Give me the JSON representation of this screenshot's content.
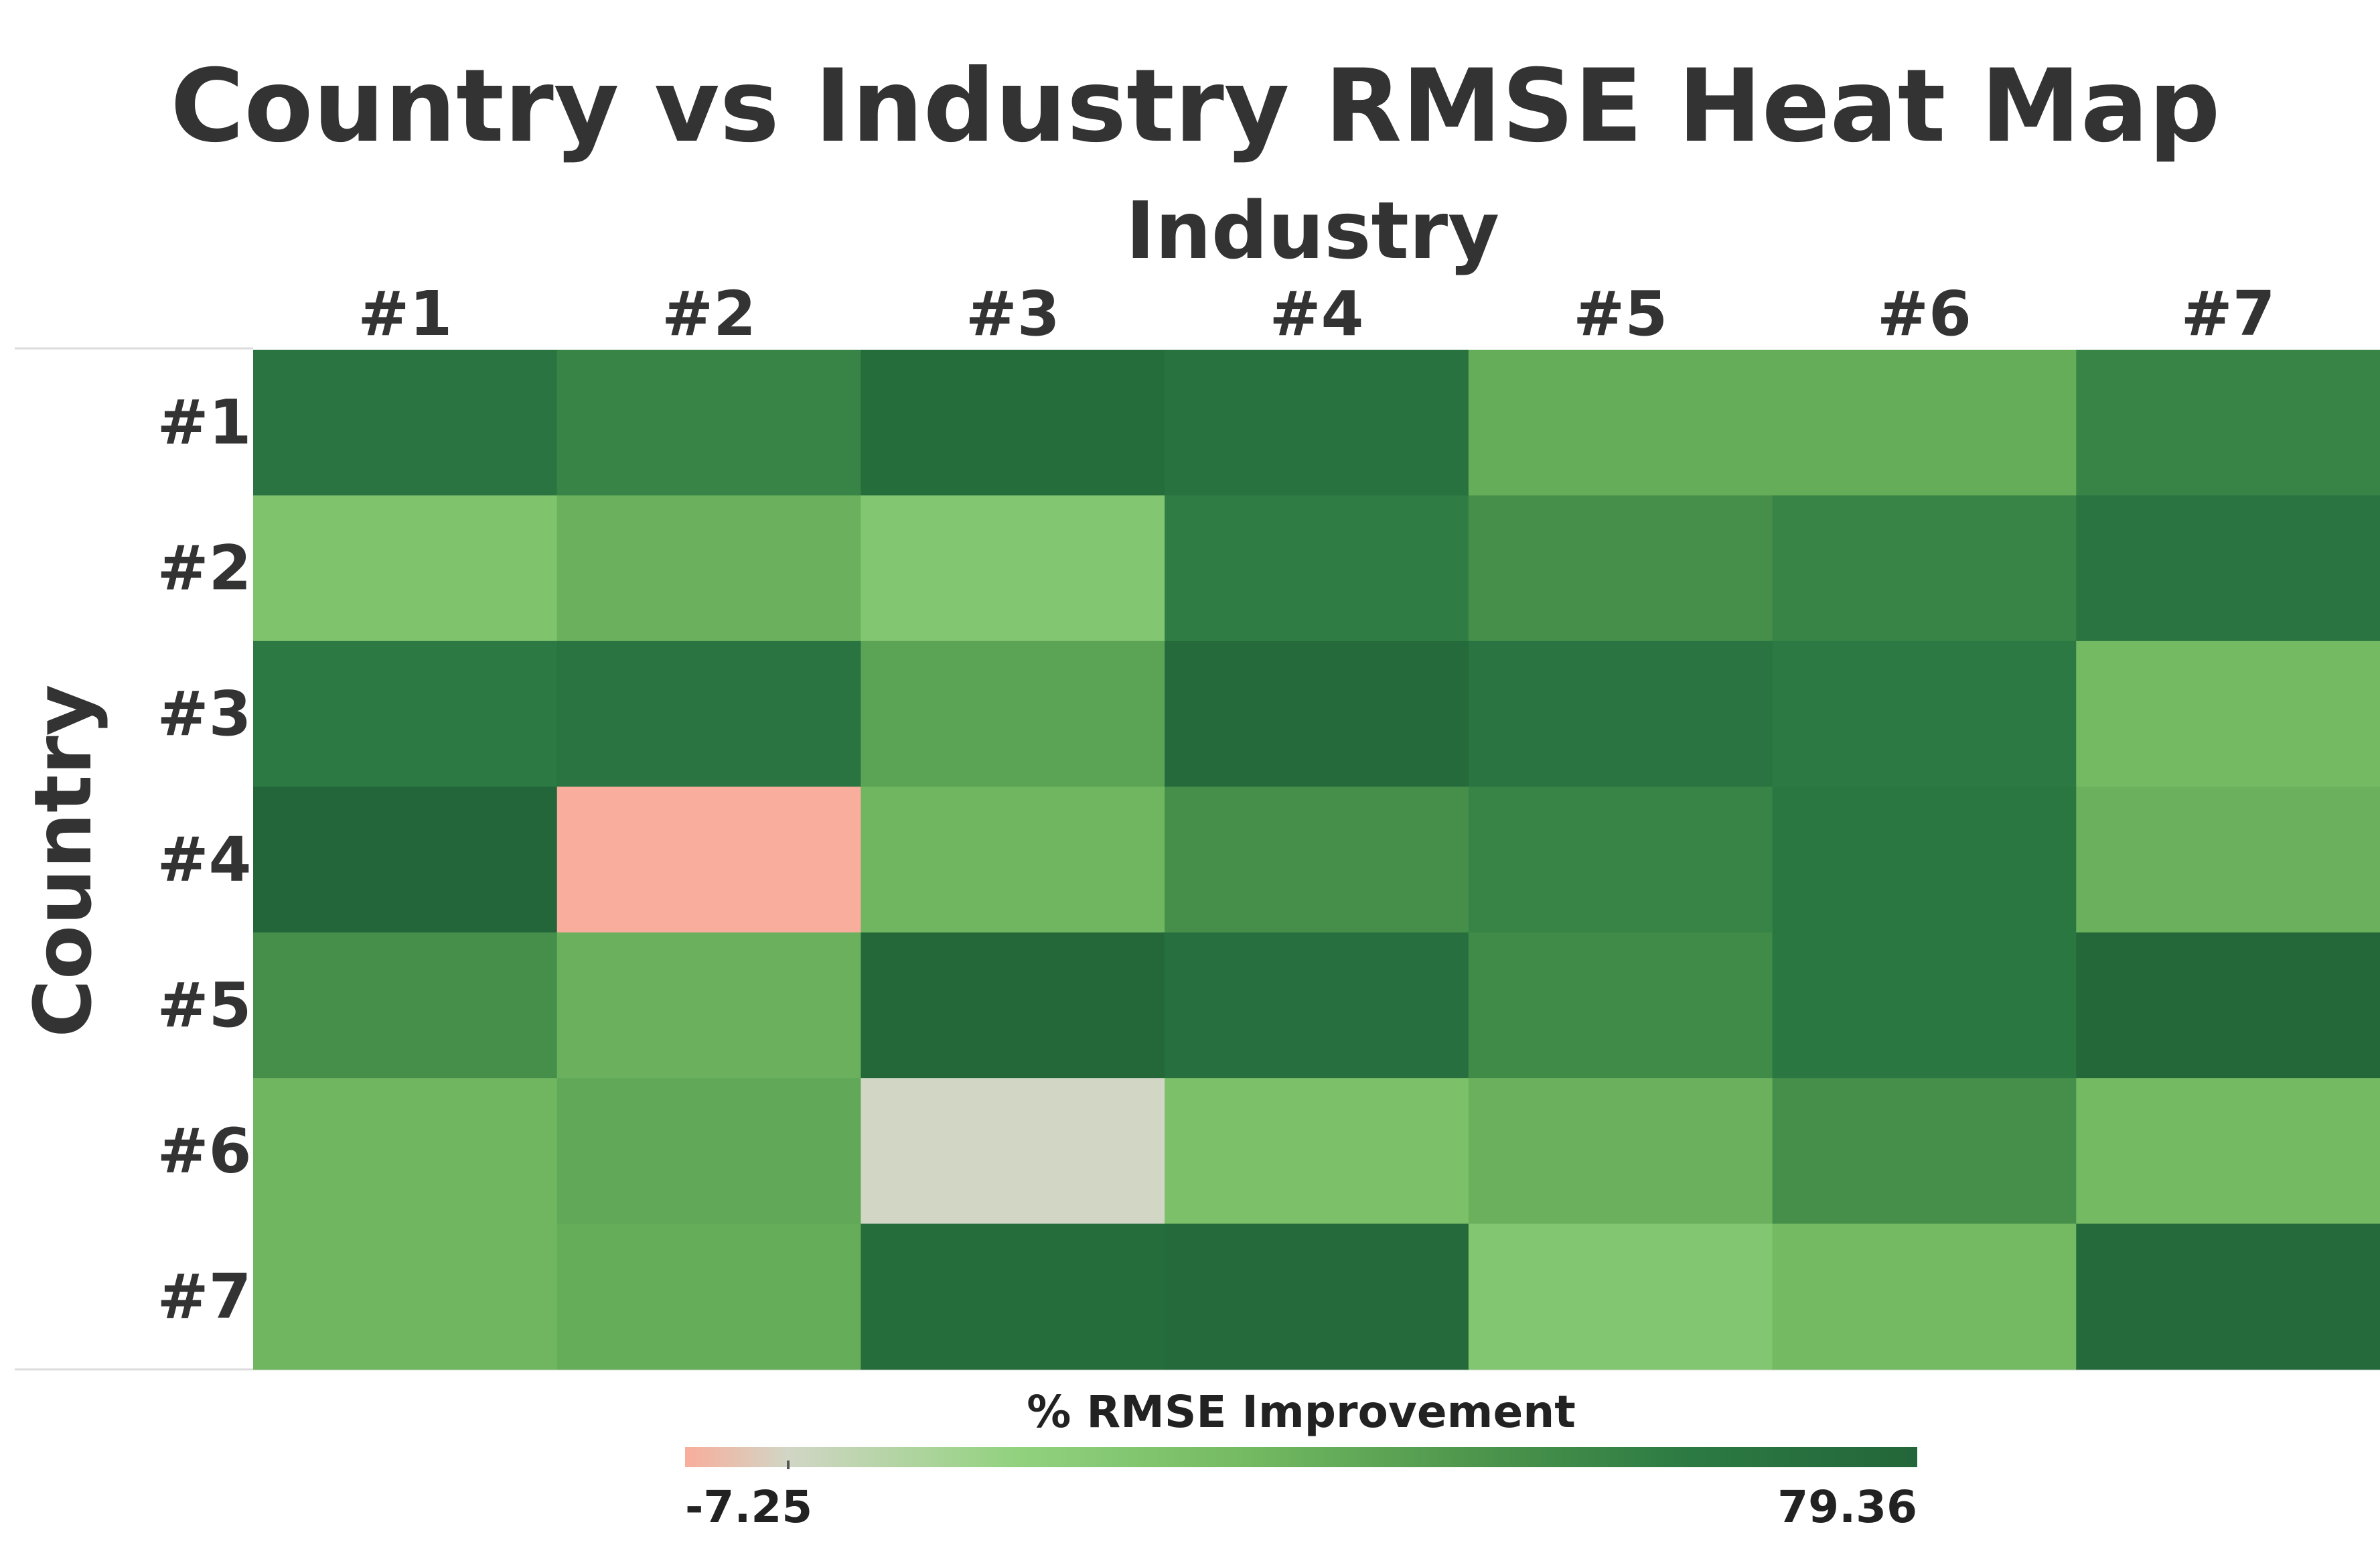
{
  "chart_data": {
    "type": "heatmap",
    "title": "Country vs Industry RMSE Heat Map",
    "xlabel": "Industry",
    "ylabel": "Country",
    "x_categories": [
      "#1",
      "#2",
      "#3",
      "#4",
      "#5",
      "#6",
      "#7"
    ],
    "y_categories": [
      "#1",
      "#2",
      "#3",
      "#4",
      "#5",
      "#6",
      "#7"
    ],
    "values": [
      [
        68,
        58,
        74,
        70,
        38,
        38,
        58
      ],
      [
        26,
        36,
        24,
        62,
        52,
        58,
        68
      ],
      [
        64,
        68,
        42,
        76,
        68,
        64,
        32
      ],
      [
        79.36,
        -7.25,
        34,
        52,
        58,
        66,
        36
      ],
      [
        52,
        36,
        78,
        72,
        54,
        66,
        78
      ],
      [
        34,
        40,
        0,
        28,
        36,
        52,
        32
      ],
      [
        34,
        38,
        74,
        76,
        24,
        32,
        76
      ]
    ],
    "colorbar": {
      "label": "% RMSE Improvement",
      "min": -7.25,
      "max": 79.36,
      "min_label": "-7.25",
      "max_label": "79.36",
      "colors": [
        "#f9ad9c",
        "#d1d6c5",
        "#92d27f",
        "#75bb63",
        "#4f974d",
        "#2c7a43",
        "#236639"
      ]
    }
  }
}
